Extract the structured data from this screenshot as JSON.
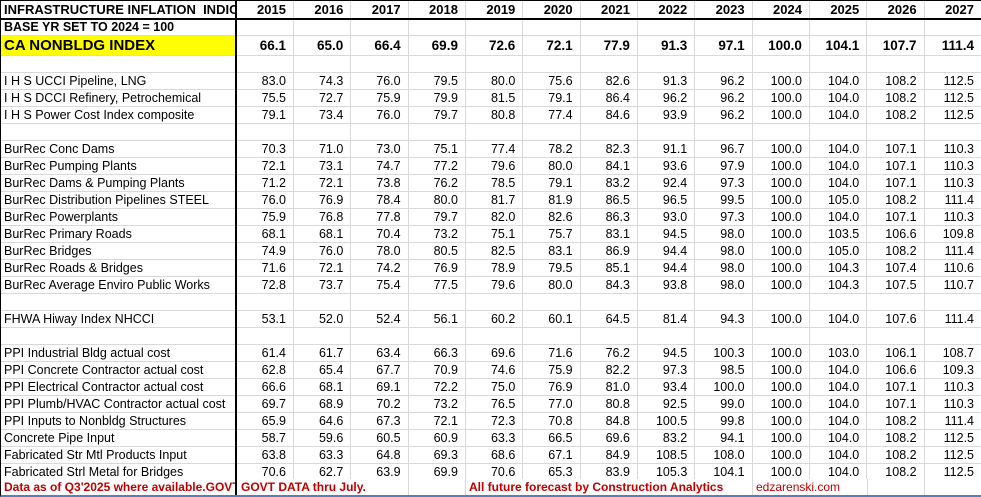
{
  "table": {
    "title": "INFRASTRUCTURE INFLATION  INDIC",
    "subtitle": "BASE YR SET TO 2024 = 100",
    "years": [
      "2015",
      "2016",
      "2017",
      "2018",
      "2019",
      "2020",
      "2021",
      "2022",
      "2023",
      "2024",
      "2025",
      "2026",
      "2027"
    ],
    "rows": [
      {
        "style": "subtitle",
        "label": "BASE YR SET TO 2024 = 100",
        "values": []
      },
      {
        "style": "highlight",
        "label": "CA NONBLDG INDEX",
        "values": [
          "66.1",
          "65.0",
          "66.4",
          "69.9",
          "72.6",
          "72.1",
          "77.9",
          "91.3",
          "97.1",
          "100.0",
          "104.1",
          "107.7",
          "111.4"
        ]
      },
      {
        "style": "blank",
        "label": "",
        "values": []
      },
      {
        "style": "normal",
        "label": "I H S UCCI Pipeline, LNG",
        "values": [
          "83.0",
          "74.3",
          "76.0",
          "79.5",
          "80.0",
          "75.6",
          "82.6",
          "91.3",
          "96.2",
          "100.0",
          "104.0",
          "108.2",
          "112.5"
        ]
      },
      {
        "style": "normal",
        "label": "I H S DCCI Refinery, Petrochemical",
        "values": [
          "75.5",
          "72.7",
          "75.9",
          "79.9",
          "81.5",
          "79.1",
          "86.4",
          "96.2",
          "96.2",
          "100.0",
          "104.0",
          "108.2",
          "112.5"
        ]
      },
      {
        "style": "normal",
        "label": "I H S Power Cost Index composite",
        "values": [
          "79.1",
          "73.4",
          "76.0",
          "79.7",
          "80.8",
          "77.4",
          "84.6",
          "93.9",
          "96.2",
          "100.0",
          "104.0",
          "108.2",
          "112.5"
        ]
      },
      {
        "style": "blank",
        "label": "",
        "values": []
      },
      {
        "style": "normal",
        "label": "BurRec Conc Dams",
        "values": [
          "70.3",
          "71.0",
          "73.0",
          "75.1",
          "77.4",
          "78.2",
          "82.3",
          "91.1",
          "96.7",
          "100.0",
          "104.0",
          "107.1",
          "110.3"
        ]
      },
      {
        "style": "normal",
        "label": "BurRec Pumping Plants",
        "values": [
          "72.1",
          "73.1",
          "74.7",
          "77.2",
          "79.6",
          "80.0",
          "84.1",
          "93.6",
          "97.9",
          "100.0",
          "104.0",
          "107.1",
          "110.3"
        ]
      },
      {
        "style": "normal",
        "label": "BurRec Dams & Pumping Plants",
        "values": [
          "71.2",
          "72.1",
          "73.8",
          "76.2",
          "78.5",
          "79.1",
          "83.2",
          "92.4",
          "97.3",
          "100.0",
          "104.0",
          "107.1",
          "110.3"
        ]
      },
      {
        "style": "normal",
        "label": "BurRec Distribution Pipelines STEEL",
        "values": [
          "76.0",
          "76.9",
          "78.4",
          "80.0",
          "81.7",
          "81.9",
          "86.5",
          "96.5",
          "99.5",
          "100.0",
          "105.0",
          "108.2",
          "111.4"
        ]
      },
      {
        "style": "normal",
        "label": "BurRec Powerplants",
        "values": [
          "75.9",
          "76.8",
          "77.8",
          "79.7",
          "82.0",
          "82.6",
          "86.3",
          "93.0",
          "97.3",
          "100.0",
          "104.0",
          "107.1",
          "110.3"
        ]
      },
      {
        "style": "normal",
        "label": "BurRec Primary Roads",
        "values": [
          "68.1",
          "68.1",
          "70.4",
          "73.2",
          "75.1",
          "75.7",
          "83.1",
          "94.5",
          "98.0",
          "100.0",
          "103.5",
          "106.6",
          "109.8"
        ]
      },
      {
        "style": "normal",
        "label": "BurRec Bridges",
        "values": [
          "74.9",
          "76.0",
          "78.0",
          "80.5",
          "82.5",
          "83.1",
          "86.9",
          "94.4",
          "98.0",
          "100.0",
          "105.0",
          "108.2",
          "111.4"
        ]
      },
      {
        "style": "normal",
        "label": "BurRec Roads & Bridges",
        "values": [
          "71.6",
          "72.1",
          "74.2",
          "76.9",
          "78.9",
          "79.5",
          "85.1",
          "94.4",
          "98.0",
          "100.0",
          "104.3",
          "107.4",
          "110.6"
        ]
      },
      {
        "style": "normal",
        "label": "BurRec Average Enviro Public Works",
        "values": [
          "72.8",
          "73.7",
          "75.4",
          "77.5",
          "79.6",
          "80.0",
          "84.3",
          "93.8",
          "98.0",
          "100.0",
          "104.3",
          "107.5",
          "110.7"
        ]
      },
      {
        "style": "blank",
        "label": "",
        "values": []
      },
      {
        "style": "normal",
        "label": "FHWA Hiway Index NHCCI",
        "values": [
          "53.1",
          "52.0",
          "52.4",
          "56.1",
          "60.2",
          "60.1",
          "64.5",
          "81.4",
          "94.3",
          "100.0",
          "104.0",
          "107.6",
          "111.4"
        ]
      },
      {
        "style": "blank",
        "label": "",
        "values": []
      },
      {
        "style": "normal",
        "label": "PPI Industrial Bldg actual cost",
        "values": [
          "61.4",
          "61.7",
          "63.4",
          "66.3",
          "69.6",
          "71.6",
          "76.2",
          "94.5",
          "100.3",
          "100.0",
          "103.0",
          "106.1",
          "108.7"
        ]
      },
      {
        "style": "normal",
        "label": "PPI Concrete Contractor actual cost",
        "values": [
          "62.8",
          "65.4",
          "67.7",
          "70.9",
          "74.6",
          "75.9",
          "82.2",
          "97.3",
          "98.5",
          "100.0",
          "104.0",
          "106.6",
          "109.3"
        ]
      },
      {
        "style": "normal",
        "label": "PPI Electrical Contractor actual cost",
        "values": [
          "66.6",
          "68.1",
          "69.1",
          "72.2",
          "75.0",
          "76.9",
          "81.0",
          "93.4",
          "100.0",
          "100.0",
          "104.0",
          "107.1",
          "110.3"
        ]
      },
      {
        "style": "normal",
        "label": "PPI Plumb/HVAC Contractor actual cost",
        "values": [
          "69.7",
          "68.9",
          "70.2",
          "73.2",
          "76.5",
          "77.0",
          "80.8",
          "92.5",
          "99.0",
          "100.0",
          "104.0",
          "107.1",
          "110.3"
        ]
      },
      {
        "style": "normal",
        "label": "PPI Inputs to Nonbldg Structures",
        "values": [
          "65.9",
          "64.6",
          "67.3",
          "72.1",
          "72.3",
          "70.8",
          "84.8",
          "100.5",
          "99.8",
          "100.0",
          "104.0",
          "108.2",
          "111.4"
        ]
      },
      {
        "style": "normal",
        "label": "Concrete Pipe Input",
        "values": [
          "58.7",
          "59.6",
          "60.5",
          "60.9",
          "63.3",
          "66.5",
          "69.6",
          "83.2",
          "94.1",
          "100.0",
          "104.0",
          "108.2",
          "112.5"
        ]
      },
      {
        "style": "normal",
        "label": "Fabricated Str Mtl Products Input",
        "values": [
          "63.8",
          "63.3",
          "64.8",
          "69.3",
          "68.6",
          "67.1",
          "84.9",
          "108.5",
          "108.0",
          "100.0",
          "104.0",
          "108.2",
          "112.5"
        ]
      },
      {
        "style": "normal",
        "label": "Fabricated Strl Metal for Bridges",
        "values": [
          "70.6",
          "62.7",
          "63.9",
          "69.9",
          "70.6",
          "65.3",
          "83.9",
          "105.3",
          "104.1",
          "100.0",
          "104.0",
          "108.2",
          "112.5"
        ]
      }
    ]
  },
  "footer": {
    "note_a": "Data as of Q3'2025 where available.GOVT DA",
    "note_b": "GOVT DATA thru July.",
    "note_c": "All future forecast by Construction Analytics",
    "note_d": "edzarenski.com"
  },
  "colors": {
    "highlight_yellow": "#ffff00",
    "note_red": "#c00000",
    "gridline_gray": "#d9d9d9",
    "bottom_bar_blue": "#4f81bd"
  }
}
